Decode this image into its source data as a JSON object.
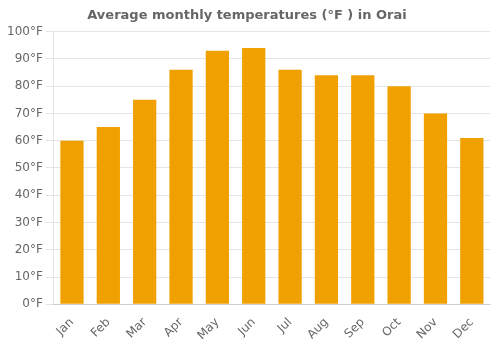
{
  "chart_data": {
    "type": "bar",
    "title": "Average monthly temperatures (°F ) in Orai",
    "categories": [
      "Jan",
      "Feb",
      "Mar",
      "Apr",
      "May",
      "Jun",
      "Jul",
      "Aug",
      "Sep",
      "Oct",
      "Nov",
      "Dec"
    ],
    "values": [
      60,
      65,
      75,
      86,
      93,
      94,
      86,
      84,
      84,
      80,
      70,
      61
    ],
    "color": "#F0A000",
    "ylim": [
      0,
      100
    ],
    "yticks": [
      {
        "value": 0,
        "label": "0°F"
      },
      {
        "value": 10,
        "label": "10°F"
      },
      {
        "value": 20,
        "label": "20°F"
      },
      {
        "value": 30,
        "label": "30°F"
      },
      {
        "value": 40,
        "label": "40°F"
      },
      {
        "value": 50,
        "label": "50°F"
      },
      {
        "value": 60,
        "label": "60°F"
      },
      {
        "value": 70,
        "label": "70°F"
      },
      {
        "value": 80,
        "label": "80°F"
      },
      {
        "value": 90,
        "label": "90°F"
      },
      {
        "value": 100,
        "label": "100°F"
      }
    ],
    "grid": true
  }
}
